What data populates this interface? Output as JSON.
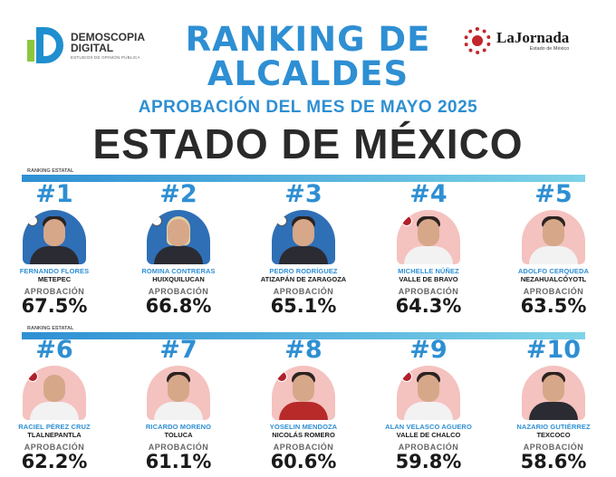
{
  "header": {
    "left_brand_name_line1": "DEMOSCOPIA",
    "left_brand_name_line2": "DIGITAL",
    "left_brand_tagline": "ESTUDIOS DE OPINIÓN PÚBLICA",
    "right_brand_name": "LaJornada",
    "right_brand_tagline": "Estado de México",
    "title_line1": "RANKING DE",
    "title_line2": "ALCALDES",
    "subtitle": "APROBACIÓN DEL MES DE MAYO 2025",
    "state": "ESTADO DE MÉXICO",
    "accent_color": "#2e8fd3"
  },
  "sections": {
    "bar_label": "RANKING ESTATAL"
  },
  "ranking": [
    {
      "rank": "#1",
      "name": "FERNANDO FLORES",
      "municipality": "METEPEC",
      "label": "APROBACIÓN",
      "percent": "67.5%"
    },
    {
      "rank": "#2",
      "name": "ROMINA CONTRERAS",
      "municipality": "HUIXQUILUCAN",
      "label": "APROBACIÓN",
      "percent": "66.8%"
    },
    {
      "rank": "#3",
      "name": "PEDRO RODRÍGUEZ",
      "municipality": "ATIZAPÁN DE ZARAGOZA",
      "label": "APROBACIÓN",
      "percent": "65.1%"
    },
    {
      "rank": "#4",
      "name": "MICHELLE NÚÑEZ",
      "municipality": "VALLE DE BRAVO",
      "label": "APROBACIÓN",
      "percent": "64.3%"
    },
    {
      "rank": "#5",
      "name": "ADOLFO CERQUEDA",
      "municipality": "NEZAHUALCÓYOTL",
      "label": "APROBACIÓN",
      "percent": "63.5%"
    },
    {
      "rank": "#6",
      "name": "RACIEL PÉREZ CRUZ",
      "municipality": "TLALNEPANTLA",
      "label": "APROBACIÓN",
      "percent": "62.2%"
    },
    {
      "rank": "#7",
      "name": "RICARDO MORENO",
      "municipality": "TOLUCA",
      "label": "APROBACIÓN",
      "percent": "61.1%"
    },
    {
      "rank": "#8",
      "name": "YOSELIN MENDOZA",
      "municipality": "NICOLÁS ROMERO",
      "label": "APROBACIÓN",
      "percent": "60.6%"
    },
    {
      "rank": "#9",
      "name": "ALAN VELASCO AGUERO",
      "municipality": "VALLE DE CHALCO",
      "label": "APROBACIÓN",
      "percent": "59.8%"
    },
    {
      "rank": "#10",
      "name": "NAZARIO GUTIÉRREZ",
      "municipality": "TEXCOCO",
      "label": "APROBACIÓN",
      "percent": "58.6%"
    }
  ]
}
